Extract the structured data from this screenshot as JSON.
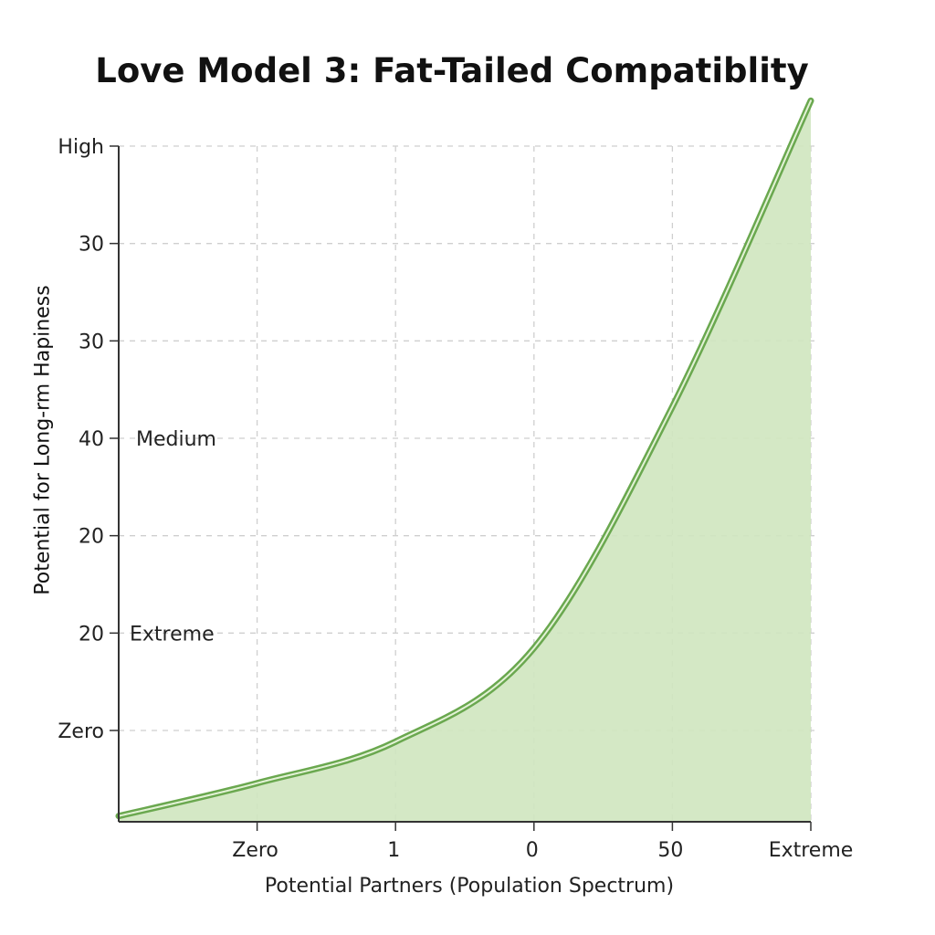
{
  "chart_data": {
    "type": "area",
    "title": "Love Model 3: Fat-Tailed Compatiblity",
    "xlabel": "Potential Partners (Population Spectrum)",
    "ylabel": "Potential for Long-rm Hapiness",
    "x_tick_labels": [
      "Zero",
      "1",
      "0",
      "50",
      "Extreme"
    ],
    "y_tick_labels": [
      "High",
      "30",
      "30",
      "40",
      "20",
      "20",
      "Zero"
    ],
    "inline_labels": [
      "Medium",
      "Extreme"
    ],
    "x": [
      0,
      1,
      2,
      3,
      4,
      5
    ],
    "y": [
      0.06,
      0.4,
      0.83,
      1.8,
      4.3,
      7.47
    ],
    "xlim": [
      0,
      5
    ],
    "ylim": [
      0,
      7
    ],
    "grid": true,
    "colors": {
      "line": "#6aa84f",
      "fill": "#cfe6bf",
      "grid": "#cfcfcf",
      "axis": "#333333"
    }
  }
}
